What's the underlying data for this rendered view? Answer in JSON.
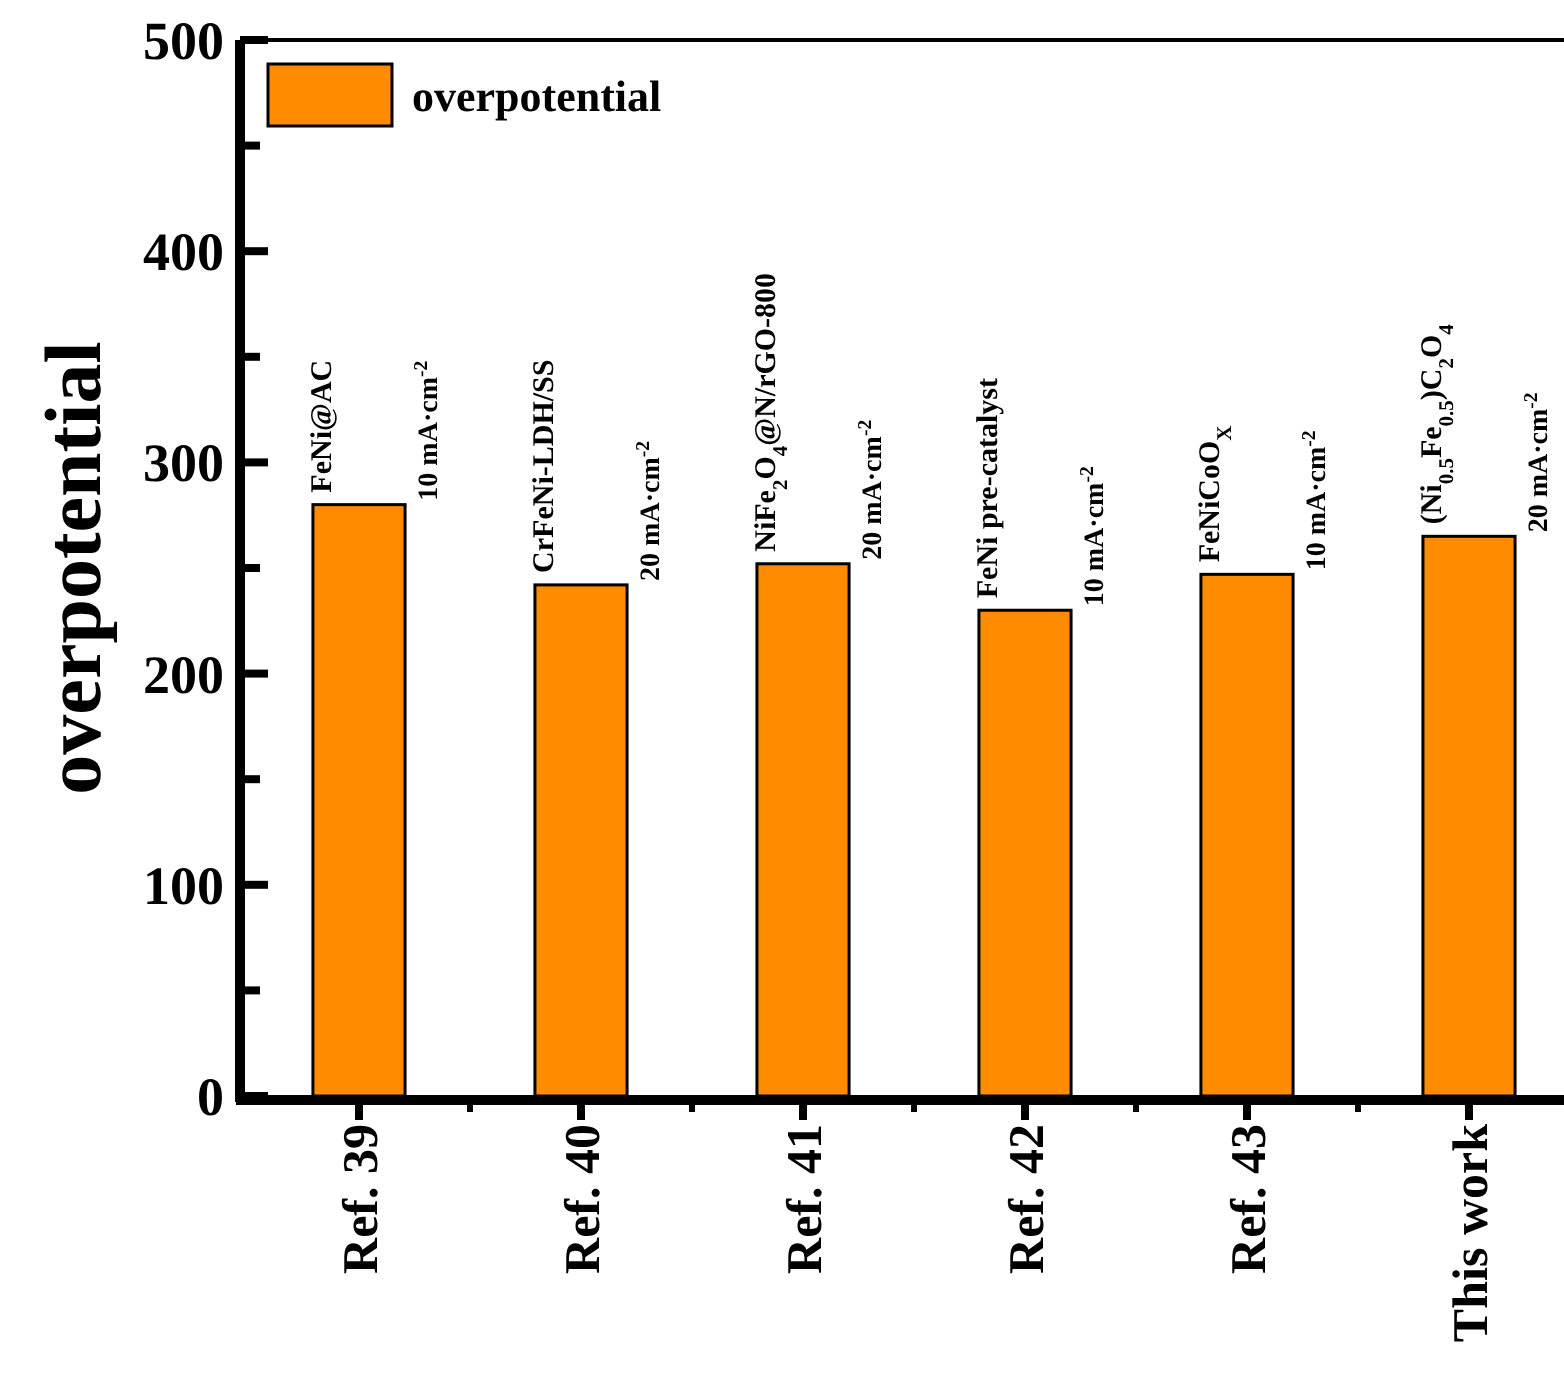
{
  "chart_data": {
    "type": "bar",
    "ylabel": "overpotential",
    "categories": [
      "Ref. 39",
      "Ref. 40",
      "Ref. 41",
      "Ref. 42",
      "Ref. 43",
      "This work"
    ],
    "series": [
      {
        "name": "overpotential",
        "color": "#ff8c00",
        "values": [
          280,
          242,
          252,
          230,
          247,
          265
        ]
      }
    ],
    "ylim": [
      0,
      500
    ],
    "yticks": [
      0,
      {
        "value": 50,
        "label": null
      },
      100,
      {
        "value": 150,
        "label": null
      },
      200,
      {
        "value": 250,
        "label": null
      },
      300,
      {
        "value": 350,
        "label": null
      },
      400,
      {
        "value": 450,
        "label": null
      },
      500
    ],
    "legend": "top left",
    "annotations": [
      {
        "text": "FeNi@AC",
        "x": "Ref. 39",
        "y": 280
      },
      {
        "text": "10 mA·cm$^{-2}$",
        "x": "Ref. 39",
        "y": 280
      },
      {
        "text": "CrFeNi-LDH/SS",
        "x": "Ref. 40",
        "y": 242
      },
      {
        "text": "20 mA·cm$^{-2}$",
        "x": "Ref. 40",
        "y": 242
      },
      {
        "text": "NiFe$_{2}$O$_{4}$@N/rGO-800",
        "x": "Ref. 41",
        "y": 252
      },
      {
        "text": "20 mA·cm$^{-2}$",
        "x": "Ref. 41",
        "y": 252
      },
      {
        "text": "FeNi pre-catalyst",
        "x": "Ref. 42",
        "y": 230
      },
      {
        "text": "10 mA·cm$^{-2}$",
        "x": "Ref. 42",
        "y": 230
      },
      {
        "text": "FeNiCoO$_{X}$",
        "x": "Ref. 43",
        "y": 247
      },
      {
        "text": "10 mA·cm$^{-2}$",
        "x": "Ref. 43",
        "y": 247
      },
      {
        "text": "(Ni$_{0.5}$Fe$_{0.5}$)C$_{2}$O$_{4}$",
        "x": "This work",
        "y": 265
      },
      {
        "text": "20 mA·cm$^{-2}$",
        "x": "This work",
        "y": 265
      }
    ]
  }
}
